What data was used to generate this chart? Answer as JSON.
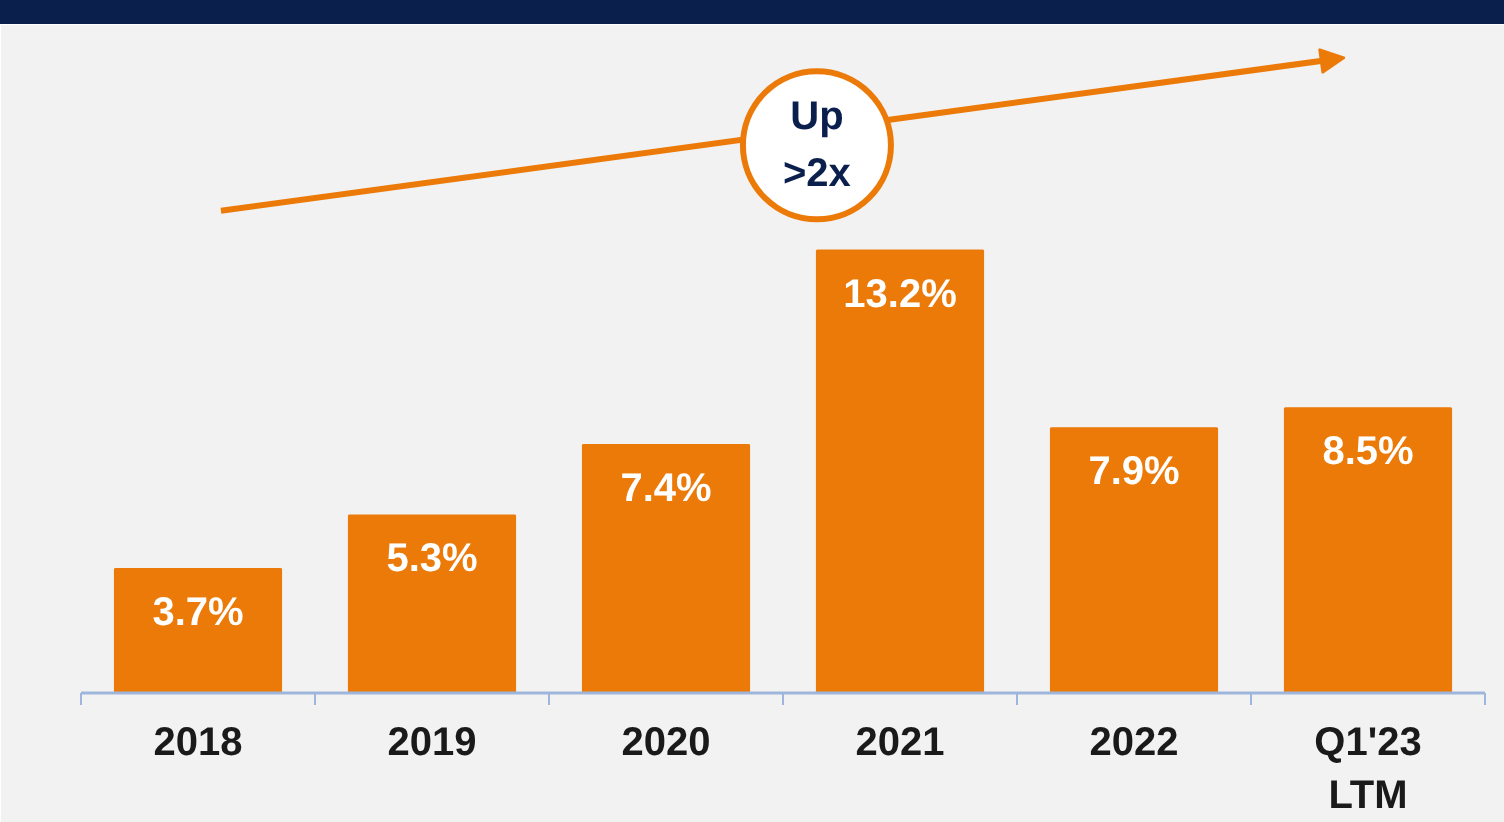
{
  "chart_data": {
    "type": "bar",
    "categories": [
      "2018",
      "2019",
      "2020",
      "2021",
      "2022",
      "Q1'23\nLTM"
    ],
    "values": [
      3.7,
      5.3,
      7.4,
      13.2,
      7.9,
      8.5
    ],
    "value_labels": [
      "3.7%",
      "5.3%",
      "7.4%",
      "13.2%",
      "7.9%",
      "8.5%"
    ],
    "color": "#ec7a08",
    "grid": false,
    "annotations": [
      "Up\n>2x"
    ]
  }
}
